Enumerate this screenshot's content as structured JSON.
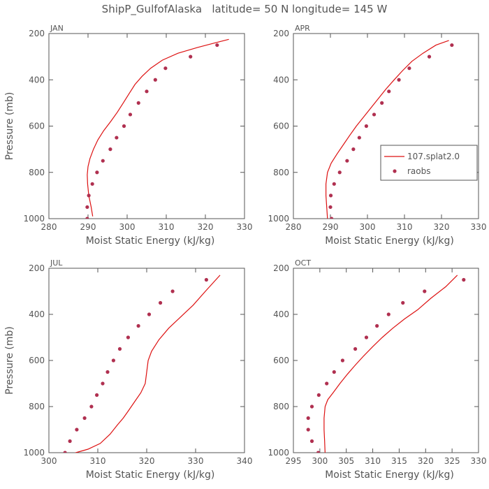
{
  "title": "ShipP_GulfofAlaska   latitude= 50 N longitude= 145 W",
  "colors": {
    "model": "#dd1111",
    "obs": "#b03050",
    "axis": "#555555"
  },
  "legend": {
    "model_label": "107.splat2.0",
    "obs_label": "raobs"
  },
  "chart_data": [
    {
      "type": "line",
      "panel": "JAN",
      "xlabel": "Moist Static Energy (kJ/kg)",
      "ylabel": "Pressure (mb)",
      "xlim": [
        280,
        330
      ],
      "xticks": [
        280,
        290,
        300,
        310,
        320,
        330
      ],
      "ylim": [
        1000,
        200
      ],
      "yticks": [
        200,
        400,
        600,
        800,
        1000
      ],
      "model": {
        "name": "107.splat2.0",
        "x": [
          291.2,
          290.8,
          290.2,
          289.9,
          289.8,
          290.0,
          290.5,
          291.4,
          292.5,
          294.0,
          295.8,
          297.5,
          299.0,
          300.5,
          302.0,
          303.8,
          306.0,
          309.0,
          313.0,
          318.0,
          322.5,
          326.0
        ],
        "y": [
          990,
          950,
          900,
          850,
          810,
          775,
          740,
          700,
          660,
          620,
          580,
          540,
          500,
          460,
          420,
          385,
          350,
          315,
          285,
          260,
          240,
          225
        ]
      },
      "obs": {
        "name": "raobs",
        "x": [
          289.8,
          289.8,
          290.2,
          291.1,
          292.3,
          293.8,
          295.7,
          297.3,
          299.2,
          300.8,
          302.9,
          305.0,
          307.2,
          309.8,
          316.2,
          323.0
        ],
        "y": [
          1000,
          950,
          900,
          850,
          800,
          750,
          700,
          650,
          600,
          550,
          500,
          450,
          400,
          350,
          300,
          250
        ]
      }
    },
    {
      "type": "line",
      "panel": "APR",
      "xlabel": "Moist Static Energy (kJ/kg)",
      "ylabel": "",
      "xlim": [
        280,
        330
      ],
      "xticks": [
        280,
        290,
        300,
        310,
        320,
        330
      ],
      "ylim": [
        1000,
        200
      ],
      "yticks": [
        200,
        400,
        600,
        800,
        1000
      ],
      "model": {
        "name": "107.splat2.0",
        "x": [
          289.2,
          289.0,
          288.8,
          288.8,
          289.2,
          290.2,
          291.8,
          293.5,
          295.2,
          297.0,
          299.0,
          301.0,
          303.0,
          305.0,
          307.2,
          309.5,
          312.0,
          315.0,
          318.5,
          322.0
        ],
        "y": [
          1000,
          950,
          900,
          850,
          800,
          760,
          720,
          680,
          640,
          600,
          560,
          520,
          480,
          440,
          400,
          360,
          320,
          285,
          250,
          230
        ]
      },
      "obs": {
        "name": "raobs",
        "x": [
          290.3,
          290.0,
          290.1,
          291.0,
          292.5,
          294.5,
          296.2,
          297.8,
          299.7,
          301.8,
          303.9,
          305.8,
          308.5,
          311.3,
          316.7,
          322.8
        ],
        "y": [
          1000,
          950,
          900,
          850,
          800,
          750,
          700,
          650,
          600,
          550,
          500,
          450,
          400,
          350,
          300,
          250
        ]
      }
    },
    {
      "type": "line",
      "panel": "JUL",
      "xlabel": "Moist Static Energy (kJ/kg)",
      "ylabel": "Pressure (mb)",
      "xlim": [
        300,
        340
      ],
      "xticks": [
        300,
        310,
        320,
        330,
        340
      ],
      "ylim": [
        1000,
        200
      ],
      "yticks": [
        200,
        400,
        600,
        800,
        1000
      ],
      "model": {
        "name": "107.splat2.0",
        "x": [
          304.5,
          305.5,
          308.0,
          310.5,
          312.5,
          314.0,
          315.2,
          316.2,
          317.5,
          318.8,
          319.7,
          320.0,
          320.3,
          321.0,
          322.5,
          324.5,
          327.0,
          329.5,
          332.0,
          335.0
        ],
        "y": [
          1010,
          1000,
          985,
          960,
          920,
          880,
          850,
          820,
          780,
          740,
          700,
          650,
          600,
          560,
          510,
          460,
          410,
          360,
          300,
          230
        ]
      },
      "obs": {
        "name": "raobs",
        "x": [
          303.3,
          304.3,
          305.7,
          307.3,
          308.7,
          309.8,
          311.0,
          312.0,
          313.2,
          314.5,
          316.2,
          318.3,
          320.5,
          322.8,
          325.3,
          332.2
        ],
        "y": [
          1000,
          950,
          900,
          850,
          800,
          750,
          700,
          650,
          600,
          550,
          500,
          450,
          400,
          350,
          300,
          250
        ]
      }
    },
    {
      "type": "line",
      "panel": "OCT",
      "xlabel": "Moist Static Energy (kJ/kg)",
      "ylabel": "",
      "xlim": [
        295,
        330
      ],
      "xticks": [
        295,
        300,
        305,
        310,
        315,
        320,
        325,
        330
      ],
      "ylim": [
        1000,
        200
      ],
      "yticks": [
        200,
        400,
        600,
        800,
        1000
      ],
      "model": {
        "name": "107.splat2.0",
        "x": [
          301.0,
          300.9,
          300.8,
          300.8,
          301.0,
          301.5,
          302.5,
          303.8,
          305.2,
          306.7,
          308.3,
          310.0,
          311.8,
          313.8,
          316.0,
          318.5,
          321.0,
          323.8,
          326.0
        ],
        "y": [
          1005,
          950,
          900,
          850,
          800,
          770,
          740,
          700,
          660,
          620,
          580,
          540,
          500,
          460,
          420,
          380,
          330,
          280,
          230
        ]
      },
      "obs": {
        "name": "raobs",
        "x": [
          299.7,
          298.5,
          297.8,
          297.8,
          298.5,
          299.8,
          301.3,
          302.7,
          304.3,
          306.7,
          308.8,
          310.8,
          313.0,
          315.7,
          319.8,
          327.2
        ],
        "y": [
          1000,
          950,
          900,
          850,
          800,
          750,
          700,
          650,
          600,
          550,
          500,
          450,
          400,
          350,
          300,
          250
        ]
      }
    }
  ]
}
